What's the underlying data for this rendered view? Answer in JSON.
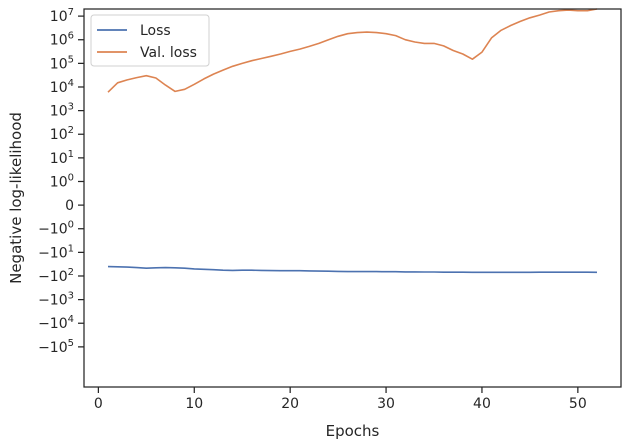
{
  "chart_data": {
    "type": "line",
    "xlabel": "Epochs",
    "ylabel": "Negative log-likelihood",
    "xlim": [
      -1.5,
      54.5
    ],
    "yscale": "symlog",
    "ylim": [
      -5000000,
      20000000
    ],
    "grid": false,
    "legend_position": "top-left",
    "x_ticks": [
      0,
      10,
      20,
      30,
      40,
      50
    ],
    "y_ticks": [
      {
        "value": 10000000,
        "label": "10^7"
      },
      {
        "value": 1000000,
        "label": "10^6"
      },
      {
        "value": 100000,
        "label": "10^5"
      },
      {
        "value": 10000,
        "label": "10^4"
      },
      {
        "value": 1000,
        "label": "10^3"
      },
      {
        "value": 100,
        "label": "10^2"
      },
      {
        "value": 10,
        "label": "10^1"
      },
      {
        "value": 1,
        "label": "10^0"
      },
      {
        "value": 0,
        "label": "0"
      },
      {
        "value": -1,
        "label": "-10^0"
      },
      {
        "value": -10,
        "label": "-10^1"
      },
      {
        "value": -100,
        "label": "-10^2"
      },
      {
        "value": -1000,
        "label": "-10^3"
      },
      {
        "value": -10000,
        "label": "-10^4"
      },
      {
        "value": -100000,
        "label": "-10^5"
      }
    ],
    "x": [
      1,
      2,
      3,
      4,
      5,
      6,
      7,
      8,
      9,
      10,
      11,
      12,
      13,
      14,
      15,
      16,
      17,
      18,
      19,
      20,
      21,
      22,
      23,
      24,
      25,
      26,
      27,
      28,
      29,
      30,
      31,
      32,
      33,
      34,
      35,
      36,
      37,
      38,
      39,
      40,
      41,
      42,
      43,
      44,
      45,
      46,
      47,
      48,
      49,
      50,
      51,
      52
    ],
    "series": [
      {
        "name": "Loss",
        "color": "#4c72b0",
        "values": [
          -40,
          -41,
          -42,
          -44,
          -47,
          -45,
          -44,
          -45,
          -47,
          -50,
          -52,
          -54,
          -57,
          -58,
          -57,
          -57,
          -58,
          -59,
          -60,
          -60,
          -60,
          -61,
          -62,
          -63,
          -64,
          -65,
          -65,
          -65,
          -65,
          -66,
          -66,
          -67,
          -67,
          -68,
          -68,
          -69,
          -69,
          -69,
          -70,
          -70,
          -70,
          -70,
          -70,
          -70,
          -70,
          -69,
          -69,
          -69,
          -69,
          -69,
          -69,
          -70
        ]
      },
      {
        "name": "Val. loss",
        "color": "#dd8452",
        "values": [
          6000,
          15000,
          20000,
          25000,
          30000,
          24000,
          12000,
          6500,
          8000,
          13000,
          22000,
          35000,
          52000,
          75000,
          100000,
          130000,
          160000,
          200000,
          250000,
          320000,
          400000,
          520000,
          700000,
          1000000,
          1400000,
          1800000,
          2000000,
          2100000,
          2000000,
          1800000,
          1500000,
          1000000,
          800000,
          700000,
          700000,
          550000,
          350000,
          250000,
          150000,
          300000,
          1200000,
          2500000,
          4000000,
          6000000,
          8500000,
          11000000,
          15000000,
          17000000,
          18000000,
          17000000,
          17000000,
          20000000
        ]
      }
    ]
  }
}
